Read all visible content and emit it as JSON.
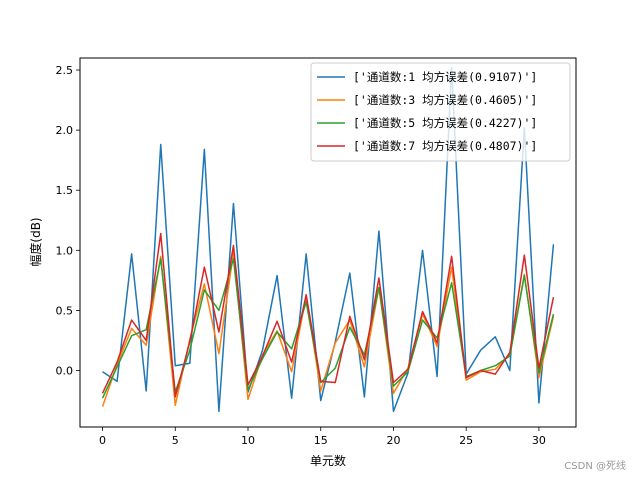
{
  "chart_data": {
    "type": "line",
    "xlabel": "单元数",
    "ylabel": "幅度(dB)",
    "xlim": [
      -1.55,
      32.55
    ],
    "ylim": [
      -0.47,
      2.6
    ],
    "xticks": [
      0,
      5,
      10,
      15,
      20,
      25,
      30
    ],
    "yticks": [
      0.0,
      0.5,
      1.0,
      1.5,
      2.0,
      2.5
    ],
    "ytick_labels": [
      "0.0",
      "0.5",
      "1.0",
      "1.5",
      "2.0",
      "2.5"
    ],
    "legend_position": "upper right",
    "x": [
      0,
      1,
      2,
      3,
      4,
      5,
      6,
      7,
      8,
      9,
      10,
      11,
      12,
      13,
      14,
      15,
      16,
      17,
      18,
      19,
      20,
      21,
      22,
      23,
      24,
      25,
      26,
      27,
      28,
      29,
      30,
      31
    ],
    "series": [
      {
        "name": "['通道数:1  均方误差(0.9107)']",
        "color": "#1f77b4",
        "values": [
          -0.01,
          -0.09,
          0.97,
          -0.17,
          1.88,
          0.04,
          0.06,
          1.84,
          -0.34,
          1.39,
          -0.18,
          0.17,
          0.79,
          -0.23,
          0.97,
          -0.25,
          0.24,
          0.81,
          -0.22,
          1.16,
          -0.34,
          -0.02,
          1.0,
          -0.05,
          2.52,
          -0.03,
          0.17,
          0.28,
          0.0,
          2.02,
          -0.27,
          1.05
        ]
      },
      {
        "name": "['通道数:3  均方误差(0.4605)']",
        "color": "#ff7f0e",
        "values": [
          -0.3,
          0.05,
          0.35,
          0.21,
          0.95,
          -0.29,
          0.26,
          0.72,
          0.14,
          0.98,
          -0.24,
          0.13,
          0.33,
          -0.01,
          0.62,
          -0.17,
          0.23,
          0.42,
          0.03,
          0.69,
          -0.19,
          0.02,
          0.47,
          0.2,
          0.86,
          -0.08,
          -0.01,
          0.01,
          0.14,
          0.8,
          -0.06,
          0.45
        ]
      },
      {
        "name": "['通道数:5  均方误差(0.4227)']",
        "color": "#2ca02c",
        "values": [
          -0.23,
          0.03,
          0.29,
          0.34,
          0.93,
          -0.18,
          0.17,
          0.67,
          0.5,
          0.93,
          -0.16,
          0.1,
          0.32,
          0.18,
          0.57,
          -0.1,
          0.02,
          0.36,
          0.13,
          0.69,
          -0.13,
          -0.01,
          0.42,
          0.27,
          0.73,
          -0.05,
          0.0,
          0.04,
          0.12,
          0.79,
          -0.02,
          0.47
        ]
      },
      {
        "name": "['通道数:7  均方误差(0.4807)']",
        "color": "#d62728",
        "values": [
          -0.19,
          0.07,
          0.42,
          0.25,
          1.14,
          -0.22,
          0.24,
          0.86,
          0.32,
          1.04,
          -0.12,
          0.12,
          0.41,
          0.07,
          0.63,
          -0.09,
          -0.1,
          0.45,
          0.09,
          0.77,
          -0.1,
          0.01,
          0.49,
          0.23,
          0.95,
          -0.06,
          0.0,
          -0.03,
          0.15,
          0.96,
          0.02,
          0.61
        ]
      }
    ]
  },
  "watermark": "CSDN @死线"
}
